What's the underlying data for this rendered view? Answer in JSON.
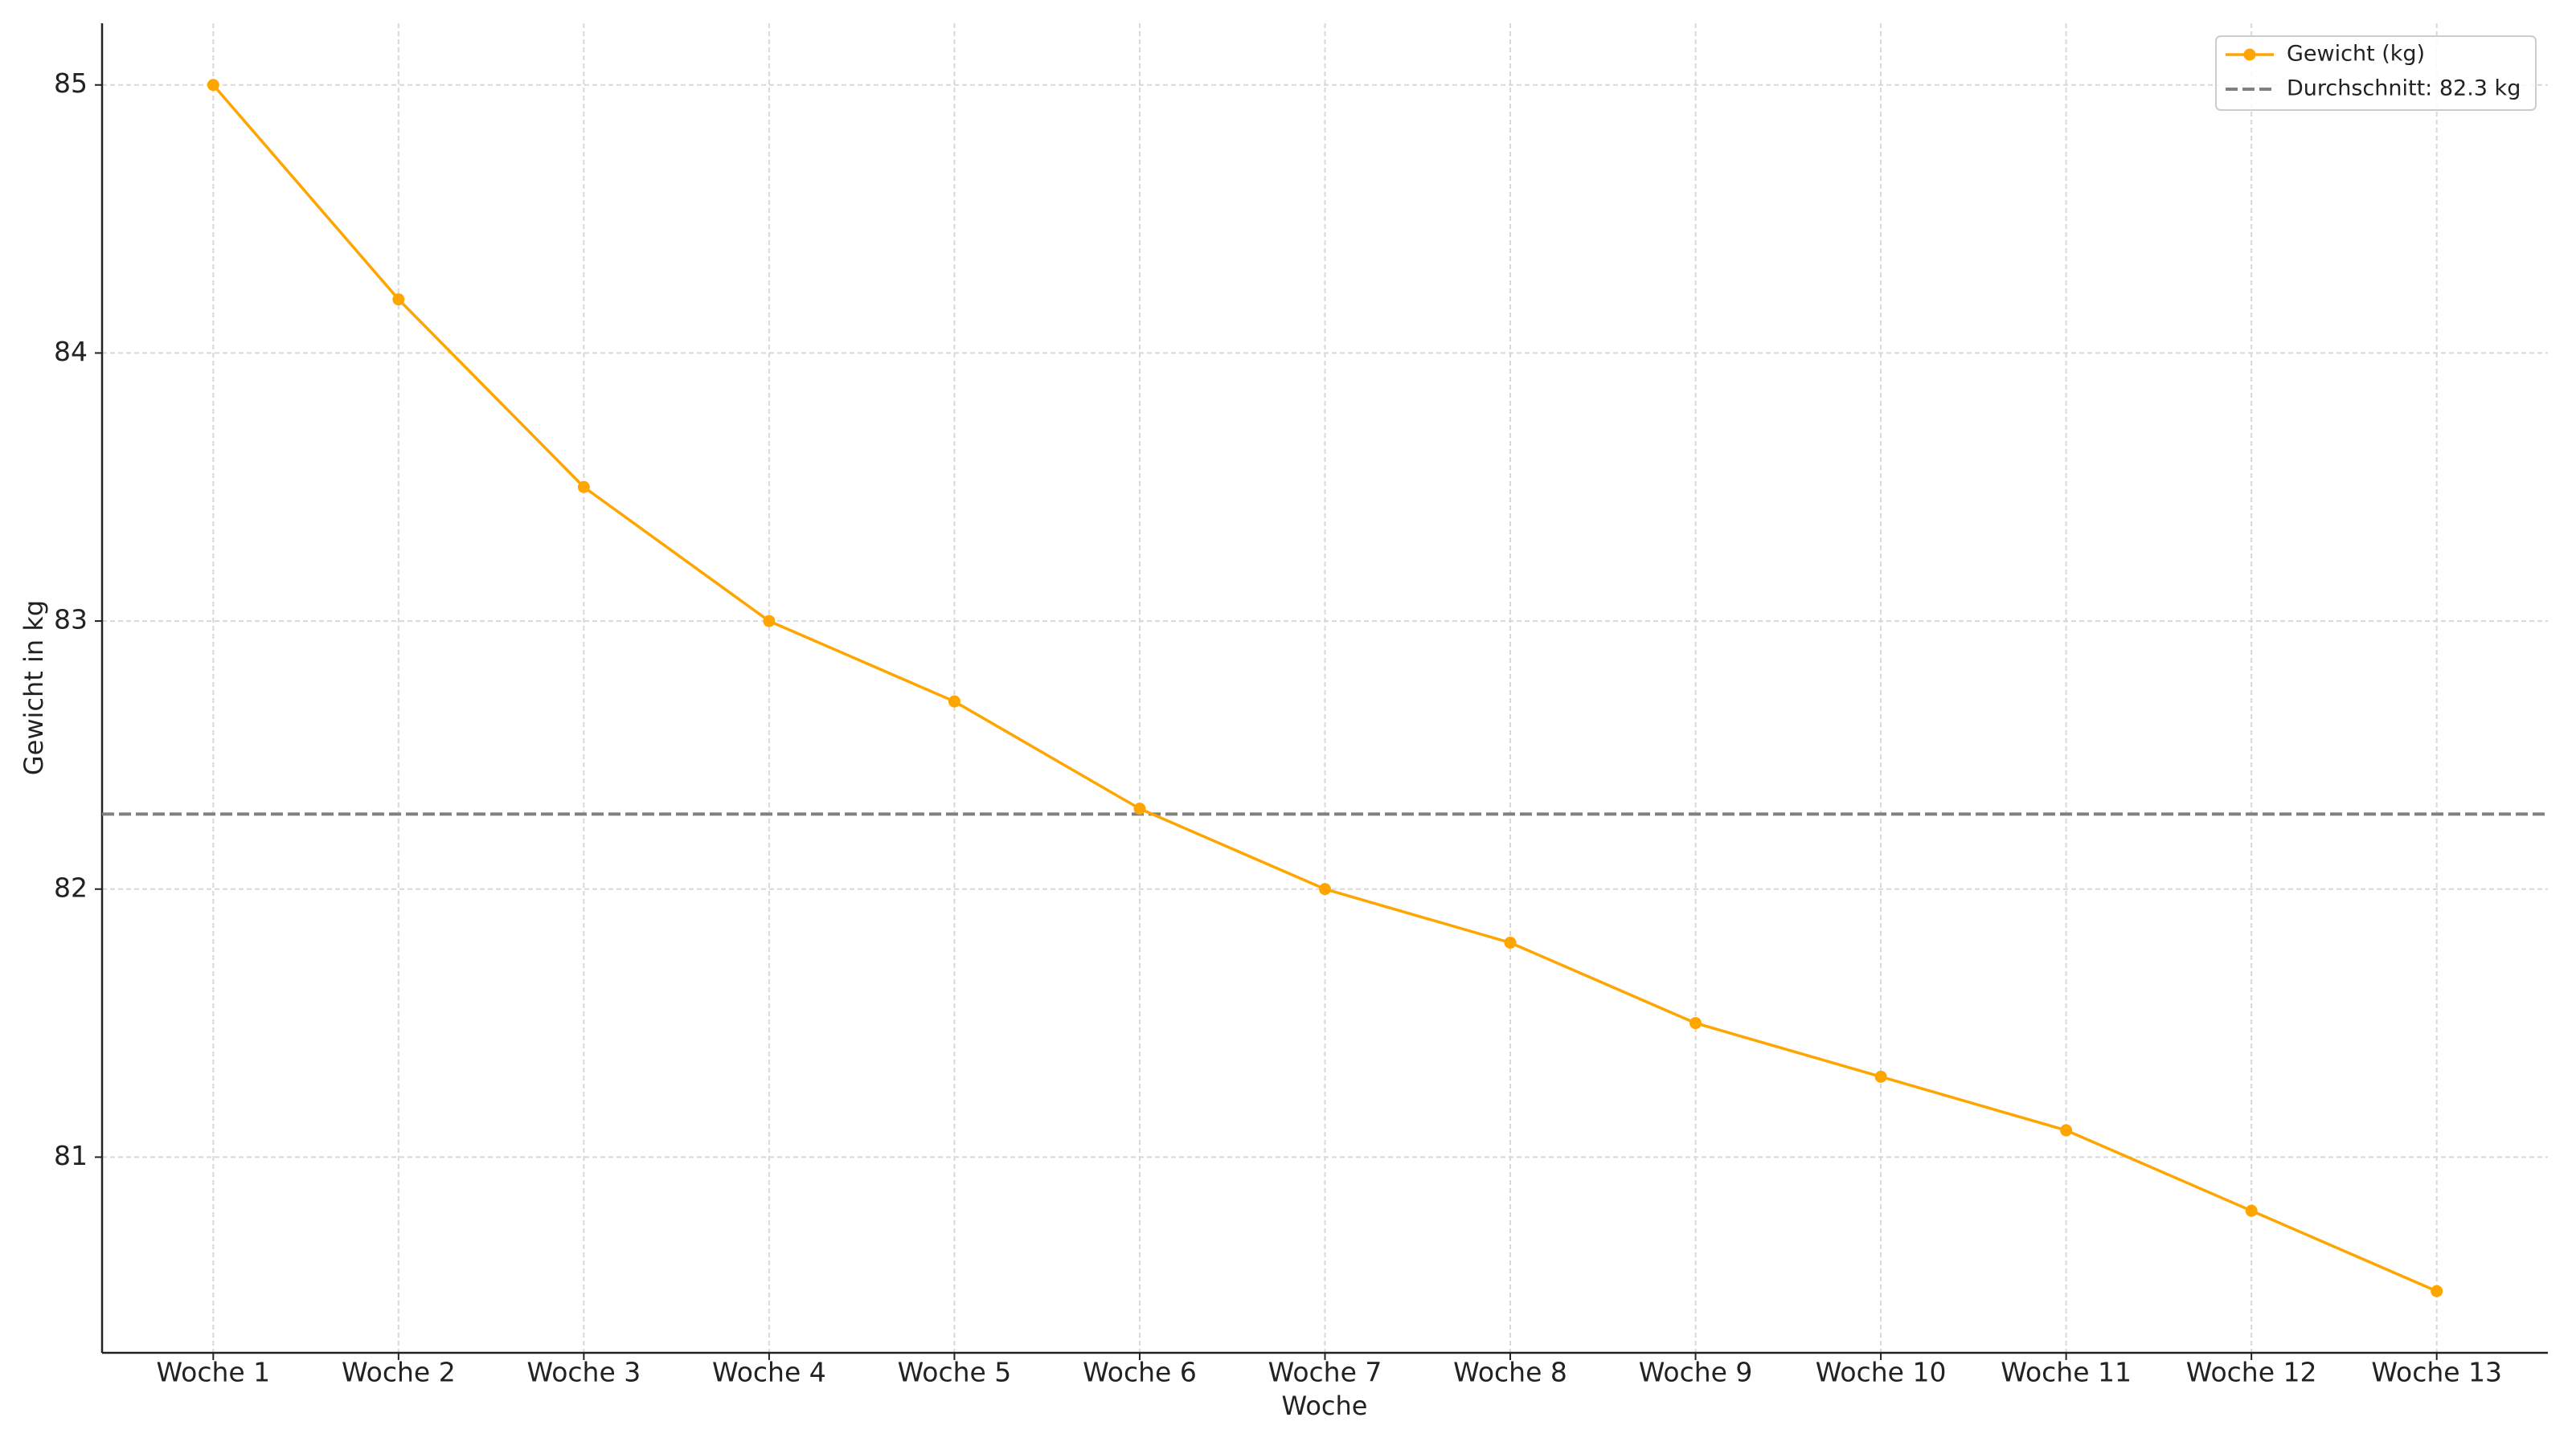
{
  "chart_data": {
    "type": "line",
    "x_label": "Woche",
    "y_label": "Gewicht in kg",
    "categories": [
      "Woche 1",
      "Woche 2",
      "Woche 3",
      "Woche 4",
      "Woche 5",
      "Woche 6",
      "Woche 7",
      "Woche 8",
      "Woche 9",
      "Woche 10",
      "Woche 11",
      "Woche 12",
      "Woche 13"
    ],
    "series": [
      {
        "name": "Gewicht (kg)",
        "color": "#ffa500",
        "values": [
          85,
          84.2,
          83.5,
          83,
          82.7,
          82.3,
          82,
          81.8,
          81.5,
          81.3,
          81.1,
          80.8,
          80.5
        ]
      }
    ],
    "reference_line": {
      "value": 82.28,
      "label": "Durchschnitt: 82.3 kg",
      "color": "#808080"
    },
    "ylim": [
      80.27,
      85.23
    ],
    "yticks": [
      81,
      82,
      83,
      84,
      85
    ],
    "grid": true,
    "legend": "upper right"
  }
}
